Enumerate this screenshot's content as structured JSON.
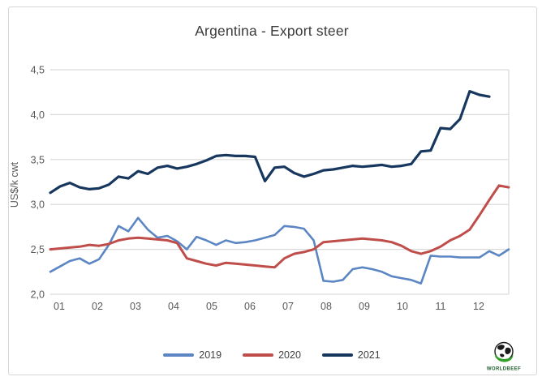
{
  "chart_data": {
    "type": "line",
    "title": "Argentina - Export steer",
    "xlabel": "",
    "ylabel": "US$/k cwt",
    "ylim": [
      2.0,
      4.5
    ],
    "ytick_step": 0.5,
    "ytick_labels": [
      "2,0",
      "2,5",
      "3,0",
      "3,5",
      "4,0",
      "4,5"
    ],
    "decimal_separator": ",",
    "grid": "horizontal-only",
    "legend_position": "bottom-center",
    "x_categories": [
      "01",
      "02",
      "03",
      "04",
      "05",
      "06",
      "07",
      "08",
      "09",
      "10",
      "11",
      "12"
    ],
    "x_resolution": "weekly (approx. 4 points per month, 48 points per year)",
    "colors": {
      "grid": "#d9d9d9",
      "axis_text": "#595959",
      "title_text": "#3b3b3b",
      "series_2019": "#5b86c3",
      "series_2020": "#bf4d49",
      "series_2021": "#17375e"
    },
    "series": [
      {
        "name": "2019",
        "color": "#5b86c3",
        "stroke_width": 2.6,
        "values": [
          2.25,
          2.31,
          2.37,
          2.4,
          2.34,
          2.39,
          2.55,
          2.76,
          2.7,
          2.85,
          2.72,
          2.63,
          2.65,
          2.59,
          2.5,
          2.64,
          2.6,
          2.55,
          2.6,
          2.57,
          2.58,
          2.6,
          2.63,
          2.66,
          2.76,
          2.75,
          2.73,
          2.6,
          2.15,
          2.14,
          2.16,
          2.28,
          2.3,
          2.28,
          2.25,
          2.2,
          2.18,
          2.16,
          2.12,
          2.43,
          2.42,
          2.42,
          2.41,
          2.41,
          2.41,
          2.48,
          2.43,
          2.5
        ]
      },
      {
        "name": "2020",
        "color": "#bf4d49",
        "stroke_width": 3.0,
        "values": [
          2.5,
          2.51,
          2.52,
          2.53,
          2.55,
          2.54,
          2.56,
          2.6,
          2.62,
          2.63,
          2.62,
          2.61,
          2.6,
          2.57,
          2.4,
          2.37,
          2.34,
          2.32,
          2.35,
          2.34,
          2.33,
          2.32,
          2.31,
          2.3,
          2.4,
          2.45,
          2.47,
          2.5,
          2.58,
          2.59,
          2.6,
          2.61,
          2.62,
          2.61,
          2.6,
          2.58,
          2.54,
          2.48,
          2.45,
          2.48,
          2.53,
          2.6,
          2.65,
          2.72,
          2.88,
          3.05,
          3.21,
          3.19
        ]
      },
      {
        "name": "2021",
        "color": "#17375e",
        "stroke_width": 3.2,
        "values": [
          3.13,
          3.2,
          3.24,
          3.19,
          3.17,
          3.18,
          3.22,
          3.31,
          3.29,
          3.37,
          3.34,
          3.41,
          3.43,
          3.4,
          3.42,
          3.45,
          3.49,
          3.54,
          3.55,
          3.54,
          3.54,
          3.53,
          3.26,
          3.41,
          3.42,
          3.35,
          3.31,
          3.34,
          3.38,
          3.39,
          3.41,
          3.43,
          3.42,
          3.43,
          3.44,
          3.42,
          3.43,
          3.45,
          3.59,
          3.6,
          3.85,
          3.84,
          3.95,
          4.26,
          4.22,
          4.2
        ]
      }
    ]
  },
  "logo": {
    "text": "WORLDBEEF",
    "green": "#2e8b35"
  }
}
